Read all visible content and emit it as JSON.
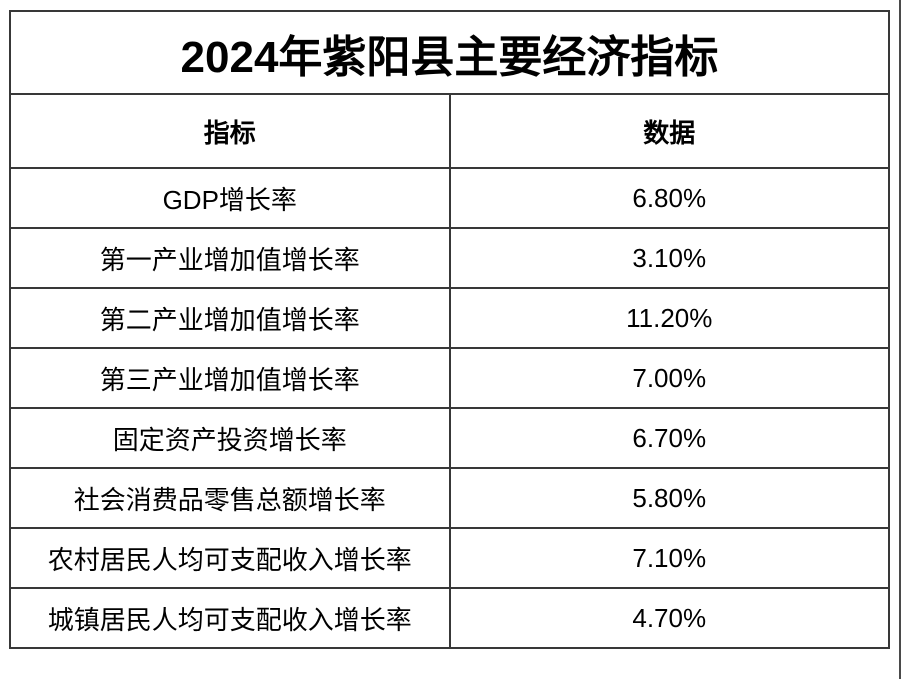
{
  "table": {
    "title": "2024年紫阳县主要经济指标",
    "columns": [
      "指标",
      "数据"
    ],
    "rows": [
      {
        "indicator": "GDP增长率",
        "value": "6.80%"
      },
      {
        "indicator": "第一产业增加值增长率",
        "value": "3.10%"
      },
      {
        "indicator": "第二产业增加值增长率",
        "value": "11.20%"
      },
      {
        "indicator": "第三产业增加值增长率",
        "value": "7.00%"
      },
      {
        "indicator": "固定资产投资增长率",
        "value": "6.70%"
      },
      {
        "indicator": "社会消费品零售总额增长率",
        "value": "5.80%"
      },
      {
        "indicator": "农村居民人均可支配收入增长率",
        "value": "7.10%"
      },
      {
        "indicator": "城镇居民人均可支配收入增长率",
        "value": "4.70%"
      }
    ]
  },
  "colors": {
    "border": "#383838",
    "text": "#000000",
    "background": "#ffffff",
    "page_edge_line": "#4a4a4a"
  },
  "chart_data": {
    "type": "table",
    "title": "2024年紫阳县主要经济指标",
    "columns": [
      "指标",
      "数据"
    ],
    "rows": [
      [
        "GDP增长率",
        "6.80%"
      ],
      [
        "第一产业增加值增长率",
        "3.10%"
      ],
      [
        "第二产业增加值增长率",
        "11.20%"
      ],
      [
        "第三产业增加值增长率",
        "7.00%"
      ],
      [
        "固定资产投资增长率",
        "6.70%"
      ],
      [
        "社会消费品零售总额增长率",
        "5.80%"
      ],
      [
        "农村居民人均可支配收入增长率",
        "7.10%"
      ],
      [
        "城镇居民人均可支配收入增长率",
        "4.70%"
      ]
    ],
    "values_percent": [
      6.8,
      3.1,
      11.2,
      7.0,
      6.7,
      5.8,
      7.1,
      4.7
    ],
    "layout_hints": {
      "title_row": "merged across both columns, bold, centered",
      "column_split": "50/50",
      "grid": "all borders visible, dark gray"
    }
  }
}
